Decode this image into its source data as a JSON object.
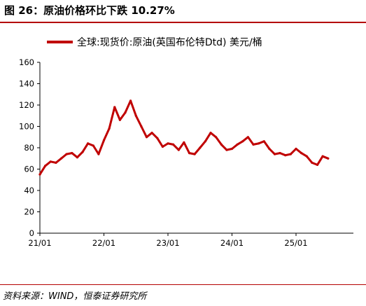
{
  "figure": {
    "title": "图 26：原油价格环比下跌 10.27%",
    "source": "资料来源：WIND，恒泰证券研究所"
  },
  "colors": {
    "line": "#c00000",
    "axis": "#000000",
    "rule": "#b40000"
  },
  "chart_data": {
    "type": "line",
    "title": "",
    "xlabel": "",
    "ylabel": "",
    "ylim": [
      0,
      160
    ],
    "yticks": [
      0,
      20,
      40,
      60,
      80,
      100,
      120,
      140,
      160
    ],
    "xticks": [
      "21/01",
      "22/01",
      "23/01",
      "24/01",
      "25/01"
    ],
    "xrange": [
      "2021-01",
      "2025-07"
    ],
    "grid": false,
    "legend_position": "top",
    "series": [
      {
        "name": "全球:现货价:原油(英国布伦特Dtd) 美元/桶",
        "x": [
          "2021-01",
          "2021-02",
          "2021-03",
          "2021-04",
          "2021-05",
          "2021-06",
          "2021-07",
          "2021-08",
          "2021-09",
          "2021-10",
          "2021-11",
          "2021-12",
          "2022-01",
          "2022-02",
          "2022-03",
          "2022-04",
          "2022-05",
          "2022-06",
          "2022-07",
          "2022-08",
          "2022-09",
          "2022-10",
          "2022-11",
          "2022-12",
          "2023-01",
          "2023-02",
          "2023-03",
          "2023-04",
          "2023-05",
          "2023-06",
          "2023-07",
          "2023-08",
          "2023-09",
          "2023-10",
          "2023-11",
          "2023-12",
          "2024-01",
          "2024-02",
          "2024-03",
          "2024-04",
          "2024-05",
          "2024-06",
          "2024-07",
          "2024-08",
          "2024-09",
          "2024-10",
          "2024-11",
          "2024-12",
          "2025-01",
          "2025-02",
          "2025-03",
          "2025-04",
          "2025-05",
          "2025-06",
          "2025-07"
        ],
        "values": [
          55,
          63,
          67,
          66,
          70,
          74,
          75,
          71,
          76,
          84,
          82,
          74,
          87,
          98,
          118,
          106,
          113,
          124,
          110,
          100,
          90,
          94,
          89,
          81,
          84,
          83,
          78,
          85,
          75,
          74,
          80,
          86,
          94,
          90,
          83,
          78,
          79,
          83,
          86,
          90,
          83,
          84,
          86,
          79,
          74,
          75,
          73,
          74,
          79,
          75,
          72,
          66,
          64,
          72,
          70
        ]
      }
    ]
  }
}
